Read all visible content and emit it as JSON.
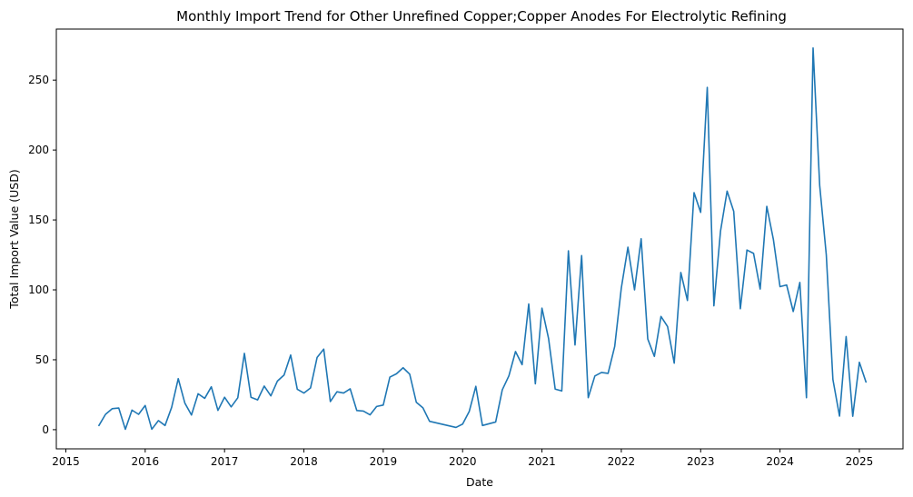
{
  "chart_data": {
    "type": "line",
    "title": "Monthly Import Trend for Other Unrefined Copper;Copper Anodes For Electrolytic Refining",
    "xlabel": "Date",
    "ylabel": "Total Import Value (USD)",
    "x_ticks": [
      2015,
      2016,
      2017,
      2018,
      2019,
      2020,
      2021,
      2022,
      2023,
      2024,
      2025
    ],
    "y_ticks": [
      0,
      50,
      100,
      150,
      200,
      250
    ],
    "xlim": [
      2014.88,
      2025.55
    ],
    "ylim": [
      -13.7,
      286.5
    ],
    "grid": false,
    "line_color": "#1f77b4",
    "series": [
      {
        "x": [
          "2015-06",
          "2015-07",
          "2015-08",
          "2015-09",
          "2015-10",
          "2015-11",
          "2015-12",
          "2016-01",
          "2016-02",
          "2016-03",
          "2016-04",
          "2016-05",
          "2016-06",
          "2016-07",
          "2016-08",
          "2016-09",
          "2016-10",
          "2016-11",
          "2016-12",
          "2017-01",
          "2017-02",
          "2017-03",
          "2017-04",
          "2017-05",
          "2017-06",
          "2017-07",
          "2017-08",
          "2017-09",
          "2017-10",
          "2017-11",
          "2017-12",
          "2018-01",
          "2018-02",
          "2018-03",
          "2018-04",
          "2018-05",
          "2018-06",
          "2018-07",
          "2018-08",
          "2018-09",
          "2018-10",
          "2018-11",
          "2018-12",
          "2019-01",
          "2019-02",
          "2019-03",
          "2019-04",
          "2019-05",
          "2019-06",
          "2019-07",
          "2019-08",
          "2019-12",
          "2020-01",
          "2020-02",
          "2020-03",
          "2020-04",
          "2020-06",
          "2020-07",
          "2020-08",
          "2020-09",
          "2020-10",
          "2020-11",
          "2020-12",
          "2021-01",
          "2021-02",
          "2021-03",
          "2021-04",
          "2021-05",
          "2021-06",
          "2021-07",
          "2021-08",
          "2021-09",
          "2021-10",
          "2021-11",
          "2021-12",
          "2022-01",
          "2022-02",
          "2022-03",
          "2022-04",
          "2022-05",
          "2022-06",
          "2022-07",
          "2022-08",
          "2022-09",
          "2022-10",
          "2022-11",
          "2022-12",
          "2023-01",
          "2023-02",
          "2023-03",
          "2023-04",
          "2023-05",
          "2023-06",
          "2023-07",
          "2023-08",
          "2023-09",
          "2023-10",
          "2023-11",
          "2023-12",
          "2024-01",
          "2024-02",
          "2024-03",
          "2024-04",
          "2024-05",
          "2024-06",
          "2024-07",
          "2024-08",
          "2024-09",
          "2024-10",
          "2024-11",
          "2024-12",
          "2025-01",
          "2025-02"
        ],
        "y": [
          3,
          11,
          15,
          15.5,
          0.3,
          14,
          11,
          17.3,
          0.3,
          6.5,
          3,
          16,
          36.5,
          19,
          10.5,
          25.7,
          22.4,
          30.7,
          13.8,
          23.2,
          16.3,
          22.8,
          54.6,
          23.2,
          21.3,
          31.2,
          24.2,
          34.8,
          39.1,
          53.4,
          28.9,
          26.2,
          29.8,
          51.7,
          57.6,
          20.1,
          27.1,
          26.2,
          29.2,
          13.7,
          13.3,
          10.6,
          16.6,
          17.6,
          37.6,
          40,
          44.3,
          39.7,
          19.6,
          15.6,
          6,
          1.6,
          4,
          13,
          31,
          3,
          5.5,
          28.5,
          38.5,
          55.9,
          46.5,
          89.9,
          32.8,
          86.9,
          65.2,
          29,
          27.7,
          127.9,
          60.6,
          124.5,
          22.9,
          38.4,
          40.9,
          40.3,
          59.5,
          101.3,
          130.5,
          100,
          136.5,
          64.9,
          52.4,
          81,
          73.7,
          47.6,
          112.4,
          92.4,
          169.5,
          155.4,
          244.8,
          88.6,
          141.9,
          170.6,
          156.1,
          86.5,
          128.5,
          126.1,
          100.6,
          159.7,
          136,
          102.3,
          103.5,
          84.5,
          105.3,
          22.9,
          273,
          174.7,
          125,
          35.9,
          9.7,
          66.6,
          9.6,
          48.2,
          34.1
        ]
      }
    ]
  }
}
